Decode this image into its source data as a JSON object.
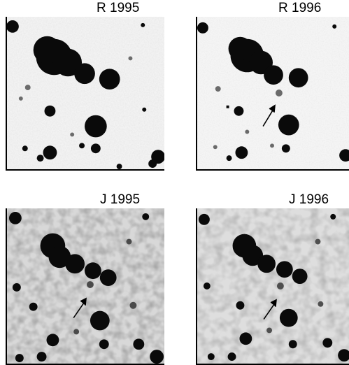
{
  "panels": [
    {
      "id": "r1995",
      "title": "R 1995",
      "band": "R",
      "arrow": false
    },
    {
      "id": "r1996",
      "title": "R 1996",
      "band": "R",
      "arrow": true
    },
    {
      "id": "j1995",
      "title": "J 1995",
      "band": "J",
      "arrow": true
    },
    {
      "id": "j1996",
      "title": "J 1996",
      "band": "J",
      "arrow": true
    }
  ],
  "colors": {
    "background": "#ffffff",
    "ink": "#000000"
  }
}
